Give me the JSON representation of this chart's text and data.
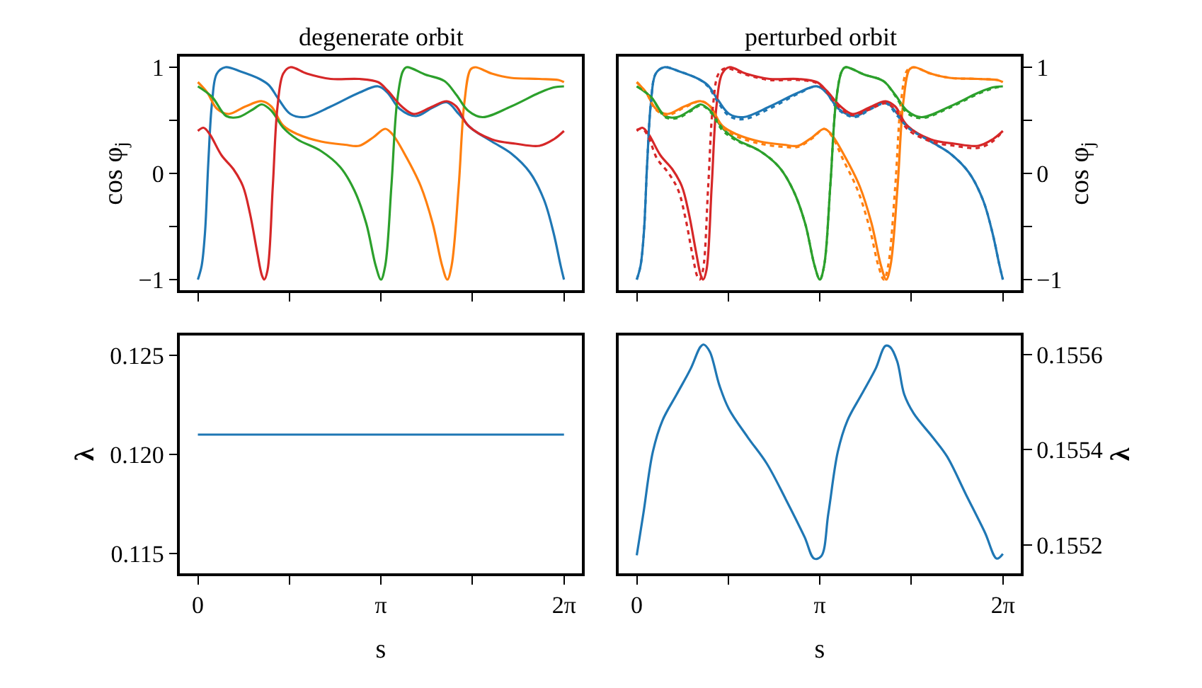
{
  "chart_data": [
    {
      "type": "line",
      "title": "degenerate orbit",
      "ylabel": "cos φ$_{j}$",
      "xlim": [
        -0.31,
        6.59
      ],
      "ylim": [
        -1.1,
        1.1
      ],
      "xticks": [
        {
          "value": 0,
          "label": null
        },
        {
          "value": 1.5708,
          "label": null
        },
        {
          "value": 3.1416,
          "label": null
        },
        {
          "value": 4.7124,
          "label": null
        },
        {
          "value": 6.2832,
          "label": null
        }
      ],
      "yticks": [
        {
          "value": -1,
          "label": "−1"
        },
        {
          "value": -0.5,
          "label": null
        },
        0,
        {
          "value": 0.5,
          "label": null
        },
        1
      ],
      "tick_labels": "y",
      "series": [
        {
          "color": "#1f77b4",
          "x": [
            0,
            0.065,
            0.122,
            0.179,
            0.244,
            0.326,
            0.472,
            0.733,
            1.058,
            1.221,
            1.384,
            1.587,
            1.831,
            2.279,
            2.767,
            3.093,
            3.256,
            3.459,
            3.744,
            4.029,
            4.273,
            4.476,
            4.68,
            5.046,
            5.372,
            5.697,
            5.941,
            6.104,
            6.226,
            6.283
          ],
          "values": [
            -1,
            -0.87,
            -0.56,
            0.1,
            0.67,
            0.94,
            1,
            0.96,
            0.89,
            0.83,
            0.7,
            0.56,
            0.53,
            0.63,
            0.76,
            0.82,
            0.76,
            0.61,
            0.54,
            0.62,
            0.67,
            0.56,
            0.43,
            0.3,
            0.19,
            0.01,
            -0.25,
            -0.56,
            -0.87,
            -1
          ]
        },
        {
          "color": "#ff7f0e",
          "x": [
            0,
            0.163,
            0.326,
            0.529,
            0.814,
            1.099,
            1.262,
            1.465,
            1.709,
            2.116,
            2.523,
            2.767,
            3.011,
            3.215,
            3.337,
            3.581,
            3.825,
            4.029,
            4.192,
            4.281,
            4.354,
            4.476,
            4.574,
            4.68,
            4.761,
            5.046,
            5.372,
            5.86,
            6.186,
            6.283
          ],
          "values": [
            0.86,
            0.76,
            0.61,
            0.56,
            0.63,
            0.68,
            0.63,
            0.45,
            0.37,
            0.3,
            0.27,
            0.26,
            0.34,
            0.42,
            0.37,
            0.15,
            -0.12,
            -0.47,
            -0.87,
            -1,
            -0.87,
            -0.12,
            0.67,
            0.98,
            1,
            0.94,
            0.9,
            0.89,
            0.88,
            0.86
          ]
        },
        {
          "color": "#2ca02c",
          "x": [
            0,
            0.244,
            0.488,
            0.692,
            0.936,
            1.099,
            1.262,
            1.465,
            1.709,
            2.116,
            2.442,
            2.686,
            2.889,
            3.052,
            3.142,
            3.215,
            3.321,
            3.418,
            3.516,
            3.581,
            3.907,
            4.232,
            4.436,
            4.639,
            4.883,
            5.372,
            5.86,
            6.104,
            6.283
          ],
          "values": [
            0.82,
            0.72,
            0.54,
            0.53,
            0.6,
            0.65,
            0.59,
            0.43,
            0.32,
            0.21,
            0.06,
            -0.16,
            -0.47,
            -0.87,
            -1,
            -0.87,
            -0.12,
            0.67,
            0.96,
            1,
            0.93,
            0.87,
            0.74,
            0.59,
            0.53,
            0.63,
            0.76,
            0.81,
            0.82
          ]
        },
        {
          "color": "#d62728",
          "x": [
            0,
            0.098,
            0.203,
            0.407,
            0.61,
            0.773,
            0.895,
            1.017,
            1.099,
            1.139,
            1.196,
            1.286,
            1.367,
            1.465,
            1.587,
            1.872,
            2.279,
            2.767,
            3.093,
            3.256,
            3.5,
            3.703,
            3.988,
            4.273,
            4.436,
            4.639,
            5.046,
            5.453,
            5.86,
            6.104,
            6.283
          ],
          "values": [
            0.4,
            0.43,
            0.37,
            0.17,
            0.04,
            -0.12,
            -0.38,
            -0.74,
            -0.96,
            -1,
            -0.91,
            -0.12,
            0.63,
            0.94,
            1,
            0.94,
            0.89,
            0.89,
            0.86,
            0.78,
            0.63,
            0.56,
            0.62,
            0.68,
            0.63,
            0.45,
            0.32,
            0.28,
            0.26,
            0.32,
            0.4
          ]
        }
      ]
    },
    {
      "type": "line",
      "title": "perturbed orbit",
      "ylabel": "cos φ$_{j}$",
      "xlim": [
        -0.31,
        6.59
      ],
      "ylim": [
        -1.1,
        1.1
      ],
      "xticks": [
        {
          "value": 0,
          "label": null
        },
        {
          "value": 1.5708,
          "label": null
        },
        {
          "value": 3.1416,
          "label": null
        },
        {
          "value": 4.7124,
          "label": null
        },
        {
          "value": 6.2832,
          "label": null
        }
      ],
      "yticks": [
        {
          "value": -1,
          "label": "−1"
        },
        {
          "value": -0.5,
          "label": null
        },
        0,
        {
          "value": 0.5,
          "label": null
        },
        1
      ],
      "tick_labels": "y",
      "series": [
        {
          "color": "#1f77b4",
          "x": [
            0,
            0.065,
            0.122,
            0.179,
            0.244,
            0.326,
            0.472,
            0.733,
            1.058,
            1.221,
            1.384,
            1.587,
            1.831,
            2.279,
            2.767,
            3.093,
            3.256,
            3.459,
            3.744,
            4.029,
            4.273,
            4.476,
            4.68,
            5.046,
            5.372,
            5.697,
            5.941,
            6.104,
            6.226,
            6.283
          ],
          "values": [
            -1,
            -0.87,
            -0.56,
            0.1,
            0.67,
            0.94,
            1,
            0.96,
            0.89,
            0.83,
            0.7,
            0.56,
            0.53,
            0.63,
            0.76,
            0.82,
            0.76,
            0.61,
            0.54,
            0.62,
            0.67,
            0.56,
            0.43,
            0.3,
            0.19,
            0.01,
            -0.25,
            -0.56,
            -0.87,
            -1
          ]
        },
        {
          "color": "#ff7f0e",
          "x": [
            0,
            0.163,
            0.326,
            0.529,
            0.814,
            1.099,
            1.262,
            1.465,
            1.709,
            2.116,
            2.523,
            2.767,
            3.011,
            3.215,
            3.337,
            3.581,
            3.825,
            4.029,
            4.192,
            4.281,
            4.354,
            4.476,
            4.574,
            4.68,
            4.761,
            5.046,
            5.372,
            5.86,
            6.186,
            6.283
          ],
          "values": [
            0.86,
            0.76,
            0.61,
            0.56,
            0.63,
            0.68,
            0.63,
            0.45,
            0.37,
            0.3,
            0.27,
            0.26,
            0.34,
            0.42,
            0.37,
            0.15,
            -0.12,
            -0.47,
            -0.87,
            -1,
            -0.87,
            -0.12,
            0.67,
            0.98,
            1,
            0.94,
            0.9,
            0.89,
            0.88,
            0.86
          ]
        },
        {
          "color": "#2ca02c",
          "x": [
            0,
            0.244,
            0.488,
            0.692,
            0.936,
            1.099,
            1.262,
            1.465,
            1.709,
            2.116,
            2.442,
            2.686,
            2.889,
            3.052,
            3.142,
            3.215,
            3.321,
            3.418,
            3.516,
            3.581,
            3.907,
            4.232,
            4.436,
            4.639,
            4.883,
            5.372,
            5.86,
            6.104,
            6.283
          ],
          "values": [
            0.82,
            0.72,
            0.54,
            0.53,
            0.6,
            0.65,
            0.59,
            0.43,
            0.32,
            0.21,
            0.06,
            -0.16,
            -0.47,
            -0.87,
            -1,
            -0.87,
            -0.12,
            0.67,
            0.96,
            1,
            0.93,
            0.87,
            0.74,
            0.59,
            0.53,
            0.63,
            0.76,
            0.81,
            0.82
          ]
        },
        {
          "color": "#d62728",
          "x": [
            0,
            0.098,
            0.203,
            0.407,
            0.61,
            0.773,
            0.895,
            1.017,
            1.099,
            1.139,
            1.196,
            1.286,
            1.367,
            1.465,
            1.587,
            1.872,
            2.279,
            2.767,
            3.093,
            3.256,
            3.5,
            3.703,
            3.988,
            4.273,
            4.436,
            4.639,
            5.046,
            5.453,
            5.86,
            6.104,
            6.283
          ],
          "values": [
            0.4,
            0.43,
            0.37,
            0.17,
            0.04,
            -0.12,
            -0.38,
            -0.74,
            -0.96,
            -1,
            -0.91,
            -0.12,
            0.63,
            0.94,
            1,
            0.94,
            0.89,
            0.89,
            0.86,
            0.78,
            0.63,
            0.56,
            0.62,
            0.68,
            0.63,
            0.45,
            0.32,
            0.28,
            0.26,
            0.32,
            0.4
          ]
        },
        {
          "color": "#1f77b4",
          "line_style": "dotted",
          "x": [
            0,
            0.065,
            0.122,
            0.179,
            0.244,
            0.326,
            0.472,
            0.733,
            1.058,
            1.221,
            1.384,
            1.587,
            1.831,
            2.279,
            2.767,
            3.093,
            3.256,
            3.459,
            3.744,
            4.029,
            4.273,
            4.476,
            4.68,
            5.046,
            5.372,
            5.697,
            5.941,
            6.104,
            6.226,
            6.283
          ],
          "values": [
            -1,
            -0.87,
            -0.56,
            0.1,
            0.67,
            0.94,
            1,
            0.96,
            0.89,
            0.82,
            0.68,
            0.54,
            0.51,
            0.61,
            0.75,
            0.82,
            0.76,
            0.6,
            0.53,
            0.61,
            0.66,
            0.54,
            0.42,
            0.3,
            0.19,
            0.01,
            -0.25,
            -0.56,
            -0.87,
            -1
          ]
        },
        {
          "color": "#ff7f0e",
          "line_style": "dotted",
          "x": [
            0,
            0.163,
            0.326,
            0.529,
            0.814,
            1.099,
            1.262,
            1.465,
            1.709,
            2.116,
            2.523,
            2.767,
            3.011,
            3.215,
            3.337,
            3.541,
            3.785,
            3.989,
            4.152,
            4.241,
            4.314,
            4.436,
            4.534,
            4.64,
            4.741,
            5.046,
            5.372,
            5.86,
            6.186,
            6.283
          ],
          "values": [
            0.86,
            0.76,
            0.6,
            0.55,
            0.62,
            0.68,
            0.63,
            0.44,
            0.35,
            0.28,
            0.25,
            0.25,
            0.33,
            0.42,
            0.36,
            0.13,
            -0.15,
            -0.5,
            -0.88,
            -1,
            -0.87,
            -0.12,
            0.67,
            0.97,
            1,
            0.94,
            0.9,
            0.89,
            0.88,
            0.86
          ]
        },
        {
          "color": "#2ca02c",
          "line_style": "dotted",
          "x": [
            0,
            0.244,
            0.488,
            0.692,
            0.936,
            1.099,
            1.262,
            1.465,
            1.709,
            2.116,
            2.442,
            2.686,
            2.889,
            3.052,
            3.142,
            3.215,
            3.321,
            3.418,
            3.516,
            3.581,
            3.907,
            4.232,
            4.436,
            4.639,
            4.883,
            5.372,
            5.86,
            6.104,
            6.283
          ],
          "values": [
            0.82,
            0.72,
            0.53,
            0.52,
            0.59,
            0.64,
            0.58,
            0.41,
            0.31,
            0.21,
            0.06,
            -0.16,
            -0.47,
            -0.87,
            -1,
            -0.87,
            -0.12,
            0.67,
            0.96,
            1,
            0.93,
            0.87,
            0.73,
            0.57,
            0.52,
            0.62,
            0.75,
            0.8,
            0.82
          ]
        },
        {
          "color": "#d62728",
          "line_style": "dotted",
          "x": [
            0,
            0.098,
            0.203,
            0.347,
            0.55,
            0.713,
            0.835,
            0.957,
            1.039,
            1.079,
            1.136,
            1.226,
            1.307,
            1.405,
            1.527,
            1.872,
            2.279,
            2.767,
            3.093,
            3.256,
            3.5,
            3.703,
            3.988,
            4.273,
            4.436,
            4.639,
            5.046,
            5.453,
            5.86,
            6.104,
            6.283
          ],
          "values": [
            0.41,
            0.42,
            0.34,
            0.14,
            0.0,
            -0.16,
            -0.42,
            -0.77,
            -0.97,
            -1,
            -0.91,
            -0.12,
            0.63,
            0.94,
            0.99,
            0.93,
            0.88,
            0.88,
            0.85,
            0.77,
            0.61,
            0.55,
            0.6,
            0.66,
            0.6,
            0.42,
            0.3,
            0.26,
            0.24,
            0.3,
            0.4
          ]
        }
      ]
    },
    {
      "type": "line",
      "xlabel": "s",
      "ylabel": "**λ**",
      "xlim": [
        -0.31,
        6.59
      ],
      "ylim": [
        0.114,
        0.126
      ],
      "xticks": [
        {
          "value": 0,
          "label": "0"
        },
        {
          "value": 1.5708,
          "label": null
        },
        {
          "value": 3.1416,
          "label": "π"
        },
        {
          "value": 4.7124,
          "label": null
        },
        {
          "value": 6.2832,
          "label": "2π"
        }
      ],
      "yticks": [
        0.115,
        {
          "value": 0.12,
          "label": "0.120"
        },
        0.125
      ],
      "series": [
        {
          "color": "#1f77b4",
          "x": [
            0,
            6.2832
          ],
          "values": [
            0.121,
            0.121
          ]
        }
      ]
    },
    {
      "type": "line",
      "xlabel": "s",
      "ylabel": "**λ**",
      "xlim": [
        -0.31,
        6.59
      ],
      "ylim": [
        0.15514,
        0.15564
      ],
      "xticks": [
        {
          "value": 0,
          "label": "0"
        },
        {
          "value": 1.5708,
          "label": null
        },
        {
          "value": 3.1416,
          "label": "π"
        },
        {
          "value": 4.7124,
          "label": null
        },
        {
          "value": 6.2832,
          "label": "2π"
        }
      ],
      "yticks": [
        0.1552,
        0.1554,
        0.1556
      ],
      "series": [
        {
          "color": "#1f77b4",
          "x": [
            0,
            0.114,
            0.277,
            0.44,
            0.684,
            0.928,
            1.091,
            1.148,
            1.253,
            1.416,
            1.579,
            1.905,
            2.23,
            2.556,
            2.881,
            3.044,
            3.166,
            3.288,
            3.451,
            3.614,
            3.858,
            4.102,
            4.265,
            4.346,
            4.468,
            4.59,
            4.753,
            5.079,
            5.323,
            5.648,
            5.974,
            6.178,
            6.283
          ],
          "values": [
            0.155178,
            0.155266,
            0.155396,
            0.155461,
            0.155516,
            0.155571,
            0.155616,
            0.155621,
            0.155606,
            0.155536,
            0.155486,
            0.155426,
            0.155371,
            0.155296,
            0.155216,
            0.155171,
            0.155176,
            0.155266,
            0.155396,
            0.155461,
            0.155516,
            0.155571,
            0.155618,
            0.155616,
            0.155586,
            0.155516,
            0.155476,
            0.155426,
            0.155386,
            0.155306,
            0.155226,
            0.155171,
            0.155181
          ]
        }
      ]
    }
  ]
}
